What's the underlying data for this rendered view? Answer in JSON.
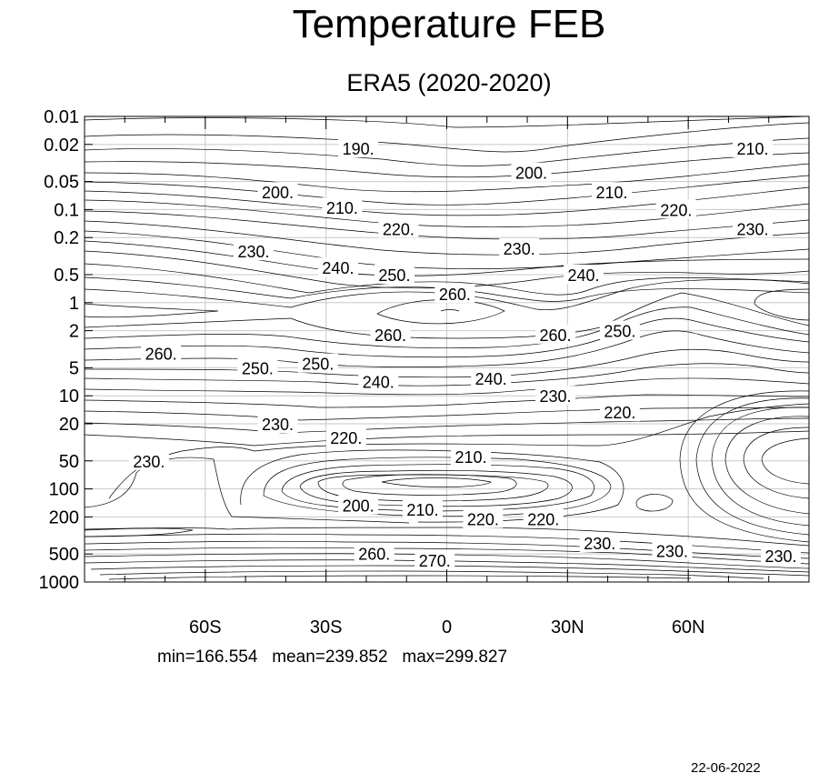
{
  "chart_data": {
    "type": "contour",
    "title": "Temperature FEB",
    "subtitle": "ERA5 (2020-2020)",
    "x_ticks": [
      {
        "lat": -60,
        "label": "60S"
      },
      {
        "lat": -30,
        "label": "30S"
      },
      {
        "lat": 0,
        "label": "0"
      },
      {
        "lat": 30,
        "label": "30N"
      },
      {
        "lat": 60,
        "label": "60N"
      }
    ],
    "xlim": [
      -90,
      90
    ],
    "y_scale": "log",
    "y_ticks": [
      {
        "p": 0.01,
        "label": "0.01"
      },
      {
        "p": 0.02,
        "label": "0.02"
      },
      {
        "p": 0.05,
        "label": "0.05"
      },
      {
        "p": 0.1,
        "label": "0.1"
      },
      {
        "p": 0.2,
        "label": "0.2"
      },
      {
        "p": 0.5,
        "label": "0.5"
      },
      {
        "p": 1,
        "label": "1"
      },
      {
        "p": 2,
        "label": "2"
      },
      {
        "p": 5,
        "label": "5"
      },
      {
        "p": 10,
        "label": "10"
      },
      {
        "p": 20,
        "label": "20"
      },
      {
        "p": 50,
        "label": "50"
      },
      {
        "p": 100,
        "label": "100"
      },
      {
        "p": 200,
        "label": "200"
      },
      {
        "p": 500,
        "label": "500"
      },
      {
        "p": 1000,
        "label": "1000"
      }
    ],
    "ylim": [
      0.01,
      1000
    ],
    "grid": true,
    "contour_labels": [
      {
        "text": "190.",
        "lat": -22,
        "p": 0.022
      },
      {
        "text": "200.",
        "lat": 21,
        "p": 0.04
      },
      {
        "text": "210.",
        "lat": 76,
        "p": 0.022
      },
      {
        "text": "200.",
        "lat": -42,
        "p": 0.065
      },
      {
        "text": "210.",
        "lat": 41,
        "p": 0.065
      },
      {
        "text": "210.",
        "lat": -26,
        "p": 0.095
      },
      {
        "text": "220.",
        "lat": 57,
        "p": 0.1
      },
      {
        "text": "220.",
        "lat": -12,
        "p": 0.16
      },
      {
        "text": "230.",
        "lat": 76,
        "p": 0.16
      },
      {
        "text": "230.",
        "lat": 18,
        "p": 0.26
      },
      {
        "text": "230.",
        "lat": -48,
        "p": 0.28
      },
      {
        "text": "240.",
        "lat": -27,
        "p": 0.42
      },
      {
        "text": "240.",
        "lat": 34,
        "p": 0.5
      },
      {
        "text": "250.",
        "lat": -13,
        "p": 0.5
      },
      {
        "text": "260.",
        "lat": 2,
        "p": 0.8
      },
      {
        "text": "250.",
        "lat": 43,
        "p": 2.0
      },
      {
        "text": "260.",
        "lat": -14,
        "p": 2.2
      },
      {
        "text": "260.",
        "lat": 27,
        "p": 2.2
      },
      {
        "text": "260.",
        "lat": -71,
        "p": 3.5
      },
      {
        "text": "250.",
        "lat": -47,
        "p": 5.0
      },
      {
        "text": "250.",
        "lat": -32,
        "p": 4.5
      },
      {
        "text": "240.",
        "lat": -17,
        "p": 7.0
      },
      {
        "text": "240.",
        "lat": 11,
        "p": 6.5
      },
      {
        "text": "230.",
        "lat": 27,
        "p": 10
      },
      {
        "text": "230.",
        "lat": -42,
        "p": 20
      },
      {
        "text": "220.",
        "lat": 43,
        "p": 15
      },
      {
        "text": "220.",
        "lat": -25,
        "p": 28
      },
      {
        "text": "230.",
        "lat": -74,
        "p": 50
      },
      {
        "text": "210.",
        "lat": 6,
        "p": 45
      },
      {
        "text": "200.",
        "lat": -22,
        "p": 150
      },
      {
        "text": "210.",
        "lat": -6,
        "p": 165
      },
      {
        "text": "220.",
        "lat": 9,
        "p": 210
      },
      {
        "text": "220.",
        "lat": 24,
        "p": 210
      },
      {
        "text": "230.",
        "lat": 38,
        "p": 380
      },
      {
        "text": "230.",
        "lat": 56,
        "p": 460
      },
      {
        "text": "230.",
        "lat": 83,
        "p": 520
      },
      {
        "text": "260.",
        "lat": -18,
        "p": 490
      },
      {
        "text": "270.",
        "lat": -3,
        "p": 580
      }
    ]
  },
  "stats": {
    "text": "min=166.554   mean=239.852   max=299.827"
  },
  "date_stamp": "22-06-2022"
}
